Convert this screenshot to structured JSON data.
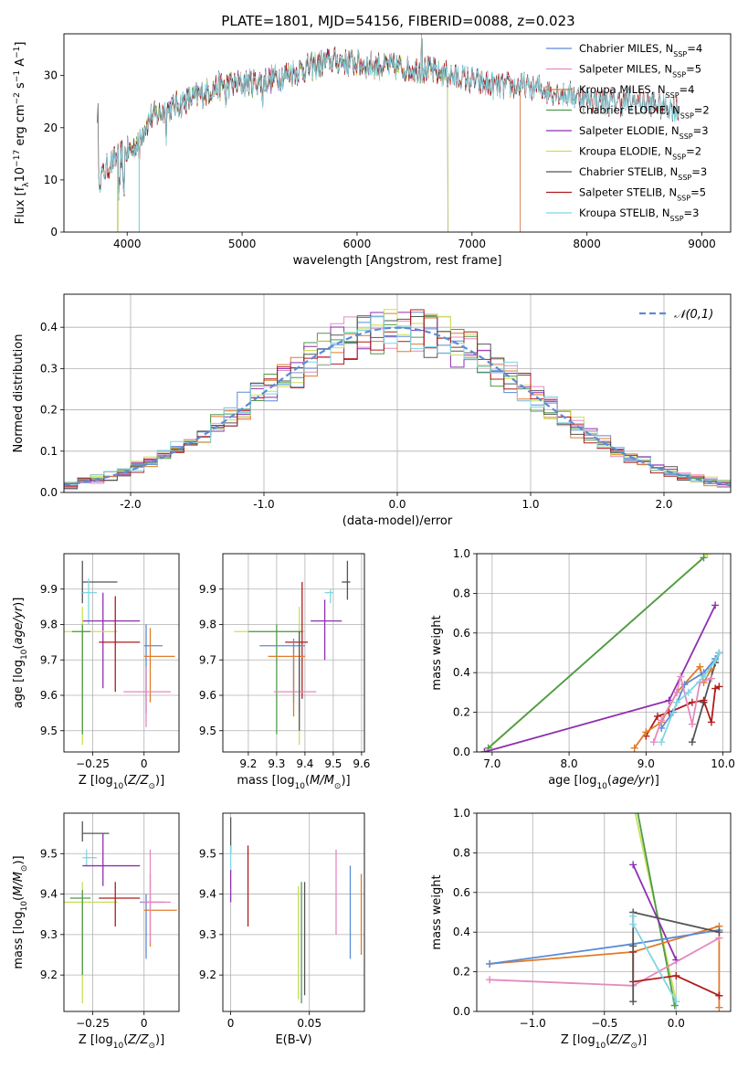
{
  "title": "PLATE=1801, MJD=54156, FIBERID=0088, z=0.023",
  "colors": {
    "Chabrier MILES": "#5b8bd6",
    "Salpeter MILES": "#e58ac0",
    "Kroupa MILES": "#e07b2a",
    "Chabrier ELODIE": "#4f9a4a",
    "Salpeter ELODIE": "#8e2fb0",
    "Kroupa ELODIE": "#c8e05a",
    "Chabrier STELIB": "#555555",
    "Salpeter STELIB": "#b01c1c",
    "Kroupa STELIB": "#7fd6e2"
  },
  "chart_data": [
    {
      "id": "spectrum",
      "type": "line",
      "title": "PLATE=1801, MJD=54156, FIBERID=0088, z=0.023",
      "xlabel": "wavelength [Angstrom, rest frame]",
      "ylabel": "Flux [f_λ 10^-17 erg cm^-2 s^-1 A^-1]",
      "xlim": [
        3450,
        9250
      ],
      "ylim": [
        0,
        38
      ],
      "xticks": [
        4000,
        5000,
        6000,
        7000,
        8000,
        9000
      ],
      "yticks": [
        0,
        10,
        20,
        30
      ],
      "legend_position": "top-right",
      "legend": [
        {
          "label": "Chabrier MILES, N",
          "sub": "SSP",
          "suffix": "=4"
        },
        {
          "label": "Salpeter MILES, N",
          "sub": "SSP",
          "suffix": "=5"
        },
        {
          "label": "Kroupa MILES, N",
          "sub": "SSP",
          "suffix": "=4"
        },
        {
          "label": "Chabrier ELODIE, N",
          "sub": "SSP",
          "suffix": "=2"
        },
        {
          "label": "Salpeter ELODIE, N",
          "sub": "SSP",
          "suffix": "=3"
        },
        {
          "label": "Kroupa ELODIE, N",
          "sub": "SSP",
          "suffix": "=2"
        },
        {
          "label": "Chabrier STELIB, N",
          "sub": "SSP",
          "suffix": "=3"
        },
        {
          "label": "Salpeter STELIB, N",
          "sub": "SSP",
          "suffix": "=5"
        },
        {
          "label": "Kroupa STELIB, N",
          "sub": "SSP",
          "suffix": "=3"
        }
      ],
      "continuum": [
        [
          3750,
          10
        ],
        [
          3850,
          13
        ],
        [
          3950,
          15
        ],
        [
          4050,
          16
        ],
        [
          4200,
          22
        ],
        [
          4400,
          24
        ],
        [
          4600,
          26
        ],
        [
          4800,
          28
        ],
        [
          5000,
          28.5
        ],
        [
          5200,
          29
        ],
        [
          5500,
          31
        ],
        [
          5800,
          33
        ],
        [
          6100,
          32
        ],
        [
          6400,
          31.5
        ],
        [
          6600,
          31
        ],
        [
          6800,
          30
        ],
        [
          7000,
          29
        ],
        [
          7200,
          28
        ],
        [
          7400,
          28
        ],
        [
          7600,
          27.5
        ],
        [
          7800,
          26.5
        ],
        [
          8000,
          25.5
        ],
        [
          8200,
          25
        ],
        [
          8400,
          25
        ],
        [
          8600,
          24.5
        ],
        [
          8800,
          23.5
        ]
      ],
      "spans": [
        {
          "model": "Chabrier MILES",
          "x": [
            3750,
            7420
          ]
        },
        {
          "model": "Salpeter MILES",
          "x": [
            3750,
            7420
          ]
        },
        {
          "model": "Kroupa MILES",
          "x": [
            3750,
            7420
          ]
        },
        {
          "model": "Chabrier ELODIE",
          "x": [
            3920,
            6790
          ]
        },
        {
          "model": "Salpeter ELODIE",
          "x": [
            3920,
            6790
          ]
        },
        {
          "model": "Kroupa ELODIE",
          "x": [
            3920,
            6790
          ]
        },
        {
          "model": "Chabrier STELIB",
          "x": [
            3740,
            8800
          ]
        },
        {
          "model": "Salpeter STELIB",
          "x": [
            3750,
            8800
          ]
        },
        {
          "model": "Kroupa STELIB",
          "x": [
            3750,
            8800
          ]
        }
      ]
    },
    {
      "id": "residuals",
      "type": "step",
      "xlabel": "(data-model)/error",
      "ylabel": "Normed distribution",
      "xlim": [
        -2.5,
        2.5
      ],
      "ylim": [
        0,
        0.48
      ],
      "xticks": [
        -2,
        -1,
        0,
        1,
        2
      ],
      "yticks": [
        0.0,
        0.1,
        0.2,
        0.3,
        0.4
      ],
      "legend_position": "top-right",
      "legend": [
        {
          "label": "𝒩(0,1)",
          "color": "#5b8bd6",
          "dash": true
        }
      ],
      "bin_width": 0.1,
      "bin_start": -2.5
    },
    {
      "id": "age-z",
      "type": "errorbar",
      "xlabel": "Z [log10(Z/Z⊙)]",
      "ylabel": "age [log10(age/yr)]",
      "xlim": [
        -0.39,
        0.17
      ],
      "ylim": [
        9.44,
        10.0
      ],
      "xticks": [
        -0.25,
        0.0
      ],
      "yticks": [
        9.5,
        9.6,
        9.7,
        9.8,
        9.9
      ],
      "points": [
        {
          "model": "Chabrier STELIB",
          "x": -0.3,
          "y": 9.92,
          "xlo": -0.3,
          "xhi": -0.13,
          "ylo": 9.86,
          "yhi": 9.98
        },
        {
          "model": "Kroupa STELIB",
          "x": -0.27,
          "y": 9.89,
          "xlo": -0.3,
          "xhi": -0.23,
          "ylo": 9.8,
          "yhi": 9.93
        },
        {
          "model": "Salpeter ELODIE",
          "x": -0.2,
          "y": 9.81,
          "xlo": -0.3,
          "xhi": -0.02,
          "ylo": 9.62,
          "yhi": 9.89
        },
        {
          "model": "Kroupa ELODIE",
          "x": -0.3,
          "y": 9.78,
          "xlo": -0.39,
          "xhi": -0.13,
          "ylo": 9.46,
          "yhi": 9.85
        },
        {
          "model": "Chabrier ELODIE",
          "x": -0.3,
          "y": 9.78,
          "xlo": -0.35,
          "xhi": -0.26,
          "ylo": 9.49,
          "yhi": 9.8
        },
        {
          "model": "Salpeter STELIB",
          "x": -0.14,
          "y": 9.75,
          "xlo": -0.22,
          "xhi": -0.02,
          "ylo": 9.61,
          "yhi": 9.88
        },
        {
          "model": "Chabrier MILES",
          "x": 0.01,
          "y": 9.74,
          "xlo": 0.0,
          "xhi": 0.09,
          "ylo": 9.55,
          "yhi": 9.8
        },
        {
          "model": "Kroupa MILES",
          "x": 0.03,
          "y": 9.71,
          "xlo": 0.0,
          "xhi": 0.15,
          "ylo": 9.58,
          "yhi": 9.79
        },
        {
          "model": "Salpeter MILES",
          "x": 0.01,
          "y": 9.61,
          "xlo": -0.1,
          "xhi": 0.13,
          "ylo": 9.51,
          "yhi": 9.68
        }
      ]
    },
    {
      "id": "age-mass",
      "type": "errorbar",
      "xlabel": "mass [log10(M/M⊙)]",
      "ylabel": "",
      "xlim": [
        9.11,
        9.61
      ],
      "ylim": [
        9.44,
        10.0
      ],
      "xticks": [
        9.2,
        9.3,
        9.4,
        9.5,
        9.6
      ],
      "yticks": [
        9.5,
        9.6,
        9.7,
        9.8,
        9.9
      ],
      "points": [
        {
          "model": "Chabrier STELIB",
          "x": 9.55,
          "y": 9.92,
          "xlo": 9.53,
          "xhi": 9.56,
          "ylo": 9.87,
          "yhi": 9.98
        },
        {
          "model": "Kroupa STELIB",
          "x": 9.49,
          "y": 9.89,
          "xlo": 9.47,
          "xhi": 9.5,
          "ylo": 9.86,
          "yhi": 9.9
        },
        {
          "model": "Salpeter ELODIE",
          "x": 9.47,
          "y": 9.81,
          "xlo": 9.42,
          "xhi": 9.53,
          "ylo": 9.7,
          "yhi": 9.87
        },
        {
          "model": "Kroupa ELODIE",
          "x": 9.38,
          "y": 9.78,
          "xlo": 9.15,
          "xhi": 9.4,
          "ylo": 9.46,
          "yhi": 9.85
        },
        {
          "model": "Chabrier ELODIE",
          "x": 9.3,
          "y": 9.78,
          "xlo": 9.2,
          "xhi": 9.39,
          "ylo": 9.49,
          "yhi": 9.8
        },
        {
          "model": "Salpeter STELIB",
          "x": 9.39,
          "y": 9.75,
          "xlo": 9.33,
          "xhi": 9.41,
          "ylo": 9.59,
          "yhi": 9.92
        },
        {
          "model": "Chabrier MILES",
          "x": 9.36,
          "y": 9.74,
          "xlo": 9.24,
          "xhi": 9.4,
          "ylo": 9.58,
          "yhi": 9.76
        },
        {
          "model": "Kroupa MILES",
          "x": 9.36,
          "y": 9.71,
          "xlo": 9.27,
          "xhi": 9.4,
          "ylo": 9.54,
          "yhi": 9.73
        },
        {
          "model": "Salpeter MILES",
          "x": 9.38,
          "y": 9.61,
          "xlo": 9.29,
          "xhi": 9.44,
          "ylo": 9.55,
          "yhi": 9.7
        },
        {
          "model": "Chabrier STELIB",
          "x": 9.38,
          "y": 9.65,
          "xlo": 9.38,
          "xhi": 9.38,
          "ylo": 9.5,
          "yhi": 9.78
        }
      ]
    },
    {
      "id": "weight-age",
      "type": "line",
      "xlabel": "age [log10(age/yr)]",
      "ylabel": "mass weight",
      "xlim": [
        6.8,
        10.1
      ],
      "ylim": [
        0,
        1.0
      ],
      "xticks": [
        7,
        8,
        9,
        10
      ],
      "yticks": [
        0.0,
        0.2,
        0.4,
        0.6,
        0.8,
        1.0
      ],
      "series": [
        {
          "model": "Kroupa ELODIE",
          "x": [
            6.9,
            9.8
          ],
          "y": [
            0.0,
            1.0
          ]
        },
        {
          "model": "Chabrier ELODIE",
          "x": [
            6.95,
            9.75
          ],
          "y": [
            0.02,
            0.98
          ]
        },
        {
          "model": "Salpeter ELODIE",
          "x": [
            6.9,
            9.3,
            9.9
          ],
          "y": [
            0.0,
            0.26,
            0.74
          ]
        },
        {
          "model": "Chabrier STELIB",
          "x": [
            9.6,
            9.75,
            9.9,
            9.95
          ],
          "y": [
            0.05,
            0.25,
            0.45,
            0.5
          ]
        },
        {
          "model": "Salpeter STELIB",
          "x": [
            9.0,
            9.15,
            9.3,
            9.6,
            9.75,
            9.85,
            9.9,
            9.95
          ],
          "y": [
            0.08,
            0.18,
            0.2,
            0.25,
            0.26,
            0.15,
            0.32,
            0.33
          ]
        },
        {
          "model": "Kroupa MILES",
          "x": [
            8.85,
            9.0,
            9.2,
            9.4,
            9.7,
            9.75,
            9.85
          ],
          "y": [
            0.02,
            0.1,
            0.15,
            0.3,
            0.43,
            0.35,
            0.42
          ]
        },
        {
          "model": "Chabrier MILES",
          "x": [
            9.2,
            9.35,
            9.5,
            9.75,
            9.9,
            9.95
          ],
          "y": [
            0.12,
            0.2,
            0.34,
            0.4,
            0.47,
            0.5
          ]
        },
        {
          "model": "Salpeter MILES",
          "x": [
            9.1,
            9.2,
            9.4,
            9.45,
            9.6,
            9.7,
            9.85
          ],
          "y": [
            0.05,
            0.16,
            0.3,
            0.38,
            0.14,
            0.35,
            0.37
          ]
        },
        {
          "model": "Kroupa STELIB",
          "x": [
            9.2,
            9.4,
            9.55,
            9.75,
            9.9,
            9.95
          ],
          "y": [
            0.05,
            0.25,
            0.3,
            0.38,
            0.46,
            0.5
          ]
        }
      ]
    },
    {
      "id": "mass-z",
      "type": "errorbar",
      "xlabel": "Z [log10(Z/Z⊙)]",
      "ylabel": "mass [log10(M/M⊙)]",
      "xlim": [
        -0.39,
        0.17
      ],
      "ylim": [
        9.11,
        9.6
      ],
      "xticks": [
        -0.25,
        0.0
      ],
      "yticks": [
        9.2,
        9.3,
        9.4,
        9.5
      ],
      "points": [
        {
          "model": "Chabrier STELIB",
          "x": -0.3,
          "y": 9.55,
          "xlo": -0.3,
          "xhi": -0.17,
          "ylo": 9.53,
          "yhi": 9.58
        },
        {
          "model": "Kroupa STELIB",
          "x": -0.28,
          "y": 9.49,
          "xlo": -0.3,
          "xhi": -0.23,
          "ylo": 9.47,
          "yhi": 9.51
        },
        {
          "model": "Salpeter ELODIE",
          "x": -0.2,
          "y": 9.47,
          "xlo": -0.3,
          "xhi": -0.02,
          "ylo": 9.42,
          "yhi": 9.55
        },
        {
          "model": "Kroupa ELODIE",
          "x": -0.3,
          "y": 9.38,
          "xlo": -0.39,
          "xhi": -0.13,
          "ylo": 9.13,
          "yhi": 9.43
        },
        {
          "model": "Chabrier ELODIE",
          "x": -0.3,
          "y": 9.39,
          "xlo": -0.36,
          "xhi": -0.26,
          "ylo": 9.2,
          "yhi": 9.41
        },
        {
          "model": "Salpeter STELIB",
          "x": -0.14,
          "y": 9.39,
          "xlo": -0.22,
          "xhi": -0.02,
          "ylo": 9.32,
          "yhi": 9.43
        },
        {
          "model": "Chabrier MILES",
          "x": 0.01,
          "y": 9.38,
          "xlo": -0.02,
          "xhi": 0.1,
          "ylo": 9.24,
          "yhi": 9.4
        },
        {
          "model": "Kroupa MILES",
          "x": 0.03,
          "y": 9.36,
          "xlo": 0.0,
          "xhi": 0.16,
          "ylo": 9.27,
          "yhi": 9.45
        },
        {
          "model": "Salpeter MILES",
          "x": 0.03,
          "y": 9.38,
          "xlo": -0.01,
          "xhi": 0.13,
          "ylo": 9.28,
          "yhi": 9.51
        }
      ]
    },
    {
      "id": "mass-ebv",
      "type": "errorbar",
      "xlabel": "E(B-V)",
      "ylabel": "",
      "xlim": [
        -0.005,
        0.085
      ],
      "ylim": [
        9.11,
        9.6
      ],
      "xticks": [
        0.0,
        0.05
      ],
      "yticks": [
        9.2,
        9.3,
        9.4,
        9.5
      ],
      "points": [
        {
          "model": "Chabrier STELIB",
          "x": 0.0,
          "y": 9.55,
          "xlo": 0.0,
          "xhi": 0.0,
          "ylo": 9.5,
          "yhi": 9.59
        },
        {
          "model": "Kroupa STELIB",
          "x": 0.0,
          "y": 9.49,
          "xlo": 0.0,
          "xhi": 0.0,
          "ylo": 9.46,
          "yhi": 9.52
        },
        {
          "model": "Salpeter ELODIE",
          "x": 0.0,
          "y": 9.43,
          "xlo": 0.0,
          "xhi": 0.0,
          "ylo": 9.38,
          "yhi": 9.46
        },
        {
          "model": "Salpeter STELIB",
          "x": 0.011,
          "y": 9.42,
          "xlo": 0.011,
          "xhi": 0.011,
          "ylo": 9.32,
          "yhi": 9.52
        },
        {
          "model": "Kroupa ELODIE",
          "x": 0.043,
          "y": 9.29,
          "xlo": 0.043,
          "xhi": 0.043,
          "ylo": 9.14,
          "yhi": 9.42
        },
        {
          "model": "Chabrier ELODIE",
          "x": 0.045,
          "y": 9.29,
          "xlo": 0.045,
          "xhi": 0.045,
          "ylo": 9.13,
          "yhi": 9.43
        },
        {
          "model": "Chabrier STELIB",
          "x": 0.047,
          "y": 9.3,
          "xlo": 0.047,
          "xhi": 0.047,
          "ylo": 9.15,
          "yhi": 9.43
        },
        {
          "model": "Salpeter MILES",
          "x": 0.067,
          "y": 9.4,
          "xlo": 0.067,
          "xhi": 0.067,
          "ylo": 9.3,
          "yhi": 9.51
        },
        {
          "model": "Chabrier MILES",
          "x": 0.076,
          "y": 9.35,
          "xlo": 0.076,
          "xhi": 0.076,
          "ylo": 9.24,
          "yhi": 9.47
        },
        {
          "model": "Kroupa MILES",
          "x": 0.083,
          "y": 9.35,
          "xlo": 0.083,
          "xhi": 0.083,
          "ylo": 9.25,
          "yhi": 9.45
        }
      ]
    },
    {
      "id": "weight-z",
      "type": "line",
      "xlabel": "Z [log10(Z/Z⊙)]",
      "ylabel": "mass weight",
      "xlim": [
        -1.39,
        0.38
      ],
      "ylim": [
        0,
        1.0
      ],
      "xticks": [
        -1.0,
        -0.5,
        0.0
      ],
      "yticks": [
        0.0,
        0.2,
        0.4,
        0.6,
        0.8,
        1.0
      ],
      "series": [
        {
          "model": "Kroupa ELODIE",
          "x": [
            -0.3,
            0.0
          ],
          "y": [
            1.05,
            0.05
          ]
        },
        {
          "model": "Chabrier ELODIE",
          "x": [
            -0.28,
            -0.01
          ],
          "y": [
            1.05,
            0.03
          ]
        },
        {
          "model": "Salpeter ELODIE",
          "x": [
            -0.3,
            0.0
          ],
          "y": [
            0.74,
            0.26
          ]
        },
        {
          "model": "Kroupa MILES",
          "x": [
            -1.3,
            -0.3,
            0.3,
            0.3
          ],
          "y": [
            0.24,
            0.3,
            0.43,
            0.02
          ]
        },
        {
          "model": "Chabrier MILES",
          "x": [
            -1.3,
            -0.3,
            0.3
          ],
          "y": [
            0.24,
            0.34,
            0.41
          ]
        },
        {
          "model": "Salpeter MILES",
          "x": [
            -1.3,
            -0.3,
            0.3
          ],
          "y": [
            0.16,
            0.13,
            0.37
          ]
        },
        {
          "model": "Salpeter STELIB",
          "x": [
            -0.3,
            -0.3,
            0.0,
            0.3,
            0.3
          ],
          "y": [
            0.3,
            0.15,
            0.18,
            0.08,
            0.08
          ]
        },
        {
          "model": "Chabrier STELIB",
          "x": [
            -0.3,
            -0.3,
            -0.3,
            0.3
          ],
          "y": [
            0.05,
            0.33,
            0.5,
            0.4
          ]
        },
        {
          "model": "Kroupa STELIB",
          "x": [
            -0.3,
            -0.3,
            0.0
          ],
          "y": [
            0.48,
            0.44,
            0.05
          ]
        }
      ]
    }
  ]
}
